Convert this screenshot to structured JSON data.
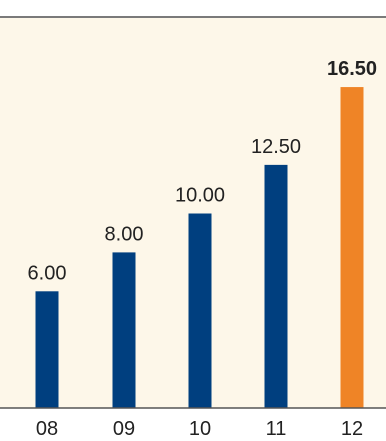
{
  "chart_data": {
    "type": "bar",
    "categories": [
      "08",
      "09",
      "10",
      "11",
      "12"
    ],
    "values": [
      6.0,
      8.0,
      10.0,
      12.5,
      16.5
    ],
    "value_labels": [
      "6.00",
      "8.00",
      "10.00",
      "12.50",
      "16.50"
    ],
    "highlight_index": 4,
    "ylim": [
      0,
      19
    ],
    "grid": false,
    "title": "",
    "xlabel": "",
    "ylabel": "",
    "colors": {
      "bar": "#003f7f",
      "highlight": "#ef8426",
      "panel_background": "#fdf7e9",
      "top_rule": "#7a7a7a",
      "axis_line": "#555555",
      "label_text": "#222222"
    }
  }
}
